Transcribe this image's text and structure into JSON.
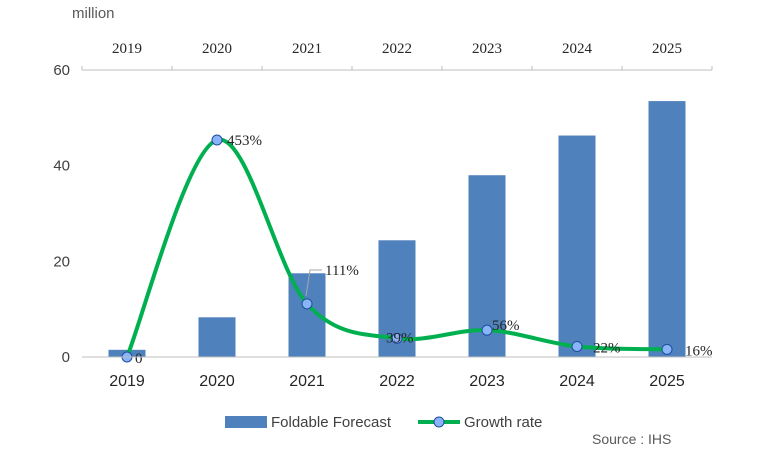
{
  "chart_data": {
    "type": "bar",
    "unit_label": "million",
    "categories": [
      "2019",
      "2020",
      "2021",
      "2022",
      "2023",
      "2024",
      "2025"
    ],
    "ylim": [
      0,
      60
    ],
    "yticks": [
      0,
      20,
      40,
      60
    ],
    "grid": false,
    "legend_position": "bottom",
    "source": "Source : IHS",
    "series": [
      {
        "name": "Foldable Forecast",
        "type": "bar",
        "color": "#4f81bd",
        "values": [
          1.5,
          8.3,
          17.5,
          24.4,
          38.0,
          46.3,
          53.5
        ]
      },
      {
        "name": "Growth rate",
        "type": "line",
        "smooth": true,
        "color": "#00b050",
        "marker_color": "#8ab4f8",
        "values_pct": [
          0,
          453,
          111,
          39,
          56,
          22,
          16
        ],
        "labels": [
          "0",
          "453%",
          "111%",
          "39%",
          "56%",
          "22%",
          "16%"
        ]
      }
    ]
  }
}
